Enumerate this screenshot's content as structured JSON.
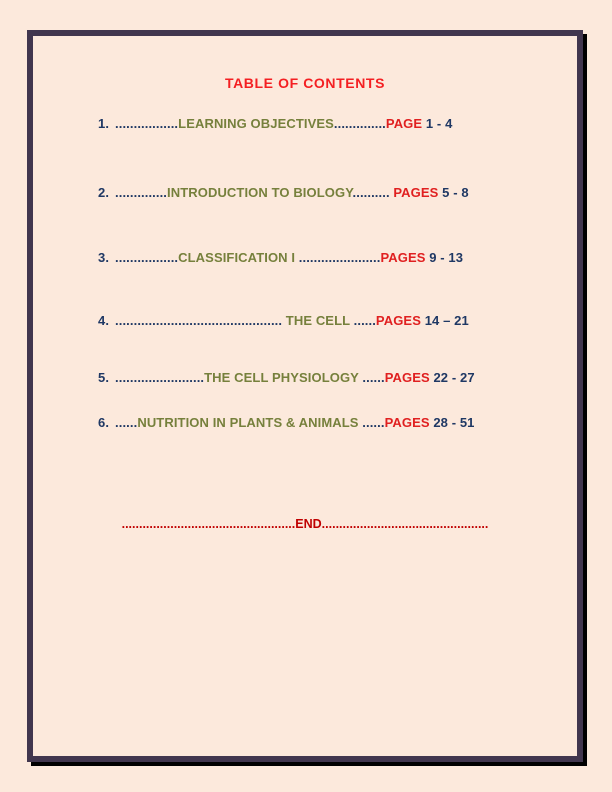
{
  "colors": {
    "background": "#fce9dc",
    "frame_border": "#41364e",
    "frame_shadow": "#000000",
    "title": "#f41f22",
    "number": "#1f3864",
    "topic": "#76803c",
    "page_label": "#e02020",
    "page_range": "#1f3864",
    "end": "#c00000"
  },
  "title": {
    "text": "TABLE OF CONTENTS"
  },
  "toc": {
    "entries": [
      {
        "num": "1.",
        "pre": ".................",
        "topic": "LEARNING OBJECTIVES",
        "mid": "..............",
        "label": "PAGE",
        "pages": " 1 - 4"
      },
      {
        "num": "2.",
        "pre": "..............",
        "topic": "INTRODUCTION TO BIOLOGY",
        "mid": ".......... ",
        "label": "PAGES",
        "pages": " 5 - 8"
      },
      {
        "num": "3.",
        "pre": ".................",
        "topic": "CLASSIFICATION I ",
        "mid": "......................",
        "label": "PAGES",
        "pages": " 9 - 13"
      },
      {
        "num": "4.",
        "pre": ".............................................",
        "topic": " THE CELL ",
        "mid": "......",
        "label": "PAGES",
        "pages": " 14 – 21"
      },
      {
        "num": "5.",
        "pre": "........................",
        "topic": "THE CELL PHYSIOLOGY ",
        "mid": "......",
        "label": "PAGES",
        "pages": " 22 - 27"
      },
      {
        "num": "6.",
        "pre": "......",
        "topic": "NUTRITION IN PLANTS & ANIMALS ",
        "mid": "......",
        "label": "PAGES",
        "pages": " 28 - 51"
      }
    ]
  },
  "end_line": {
    "pre": "..................................................",
    "text": "END",
    "post": "................................................"
  }
}
